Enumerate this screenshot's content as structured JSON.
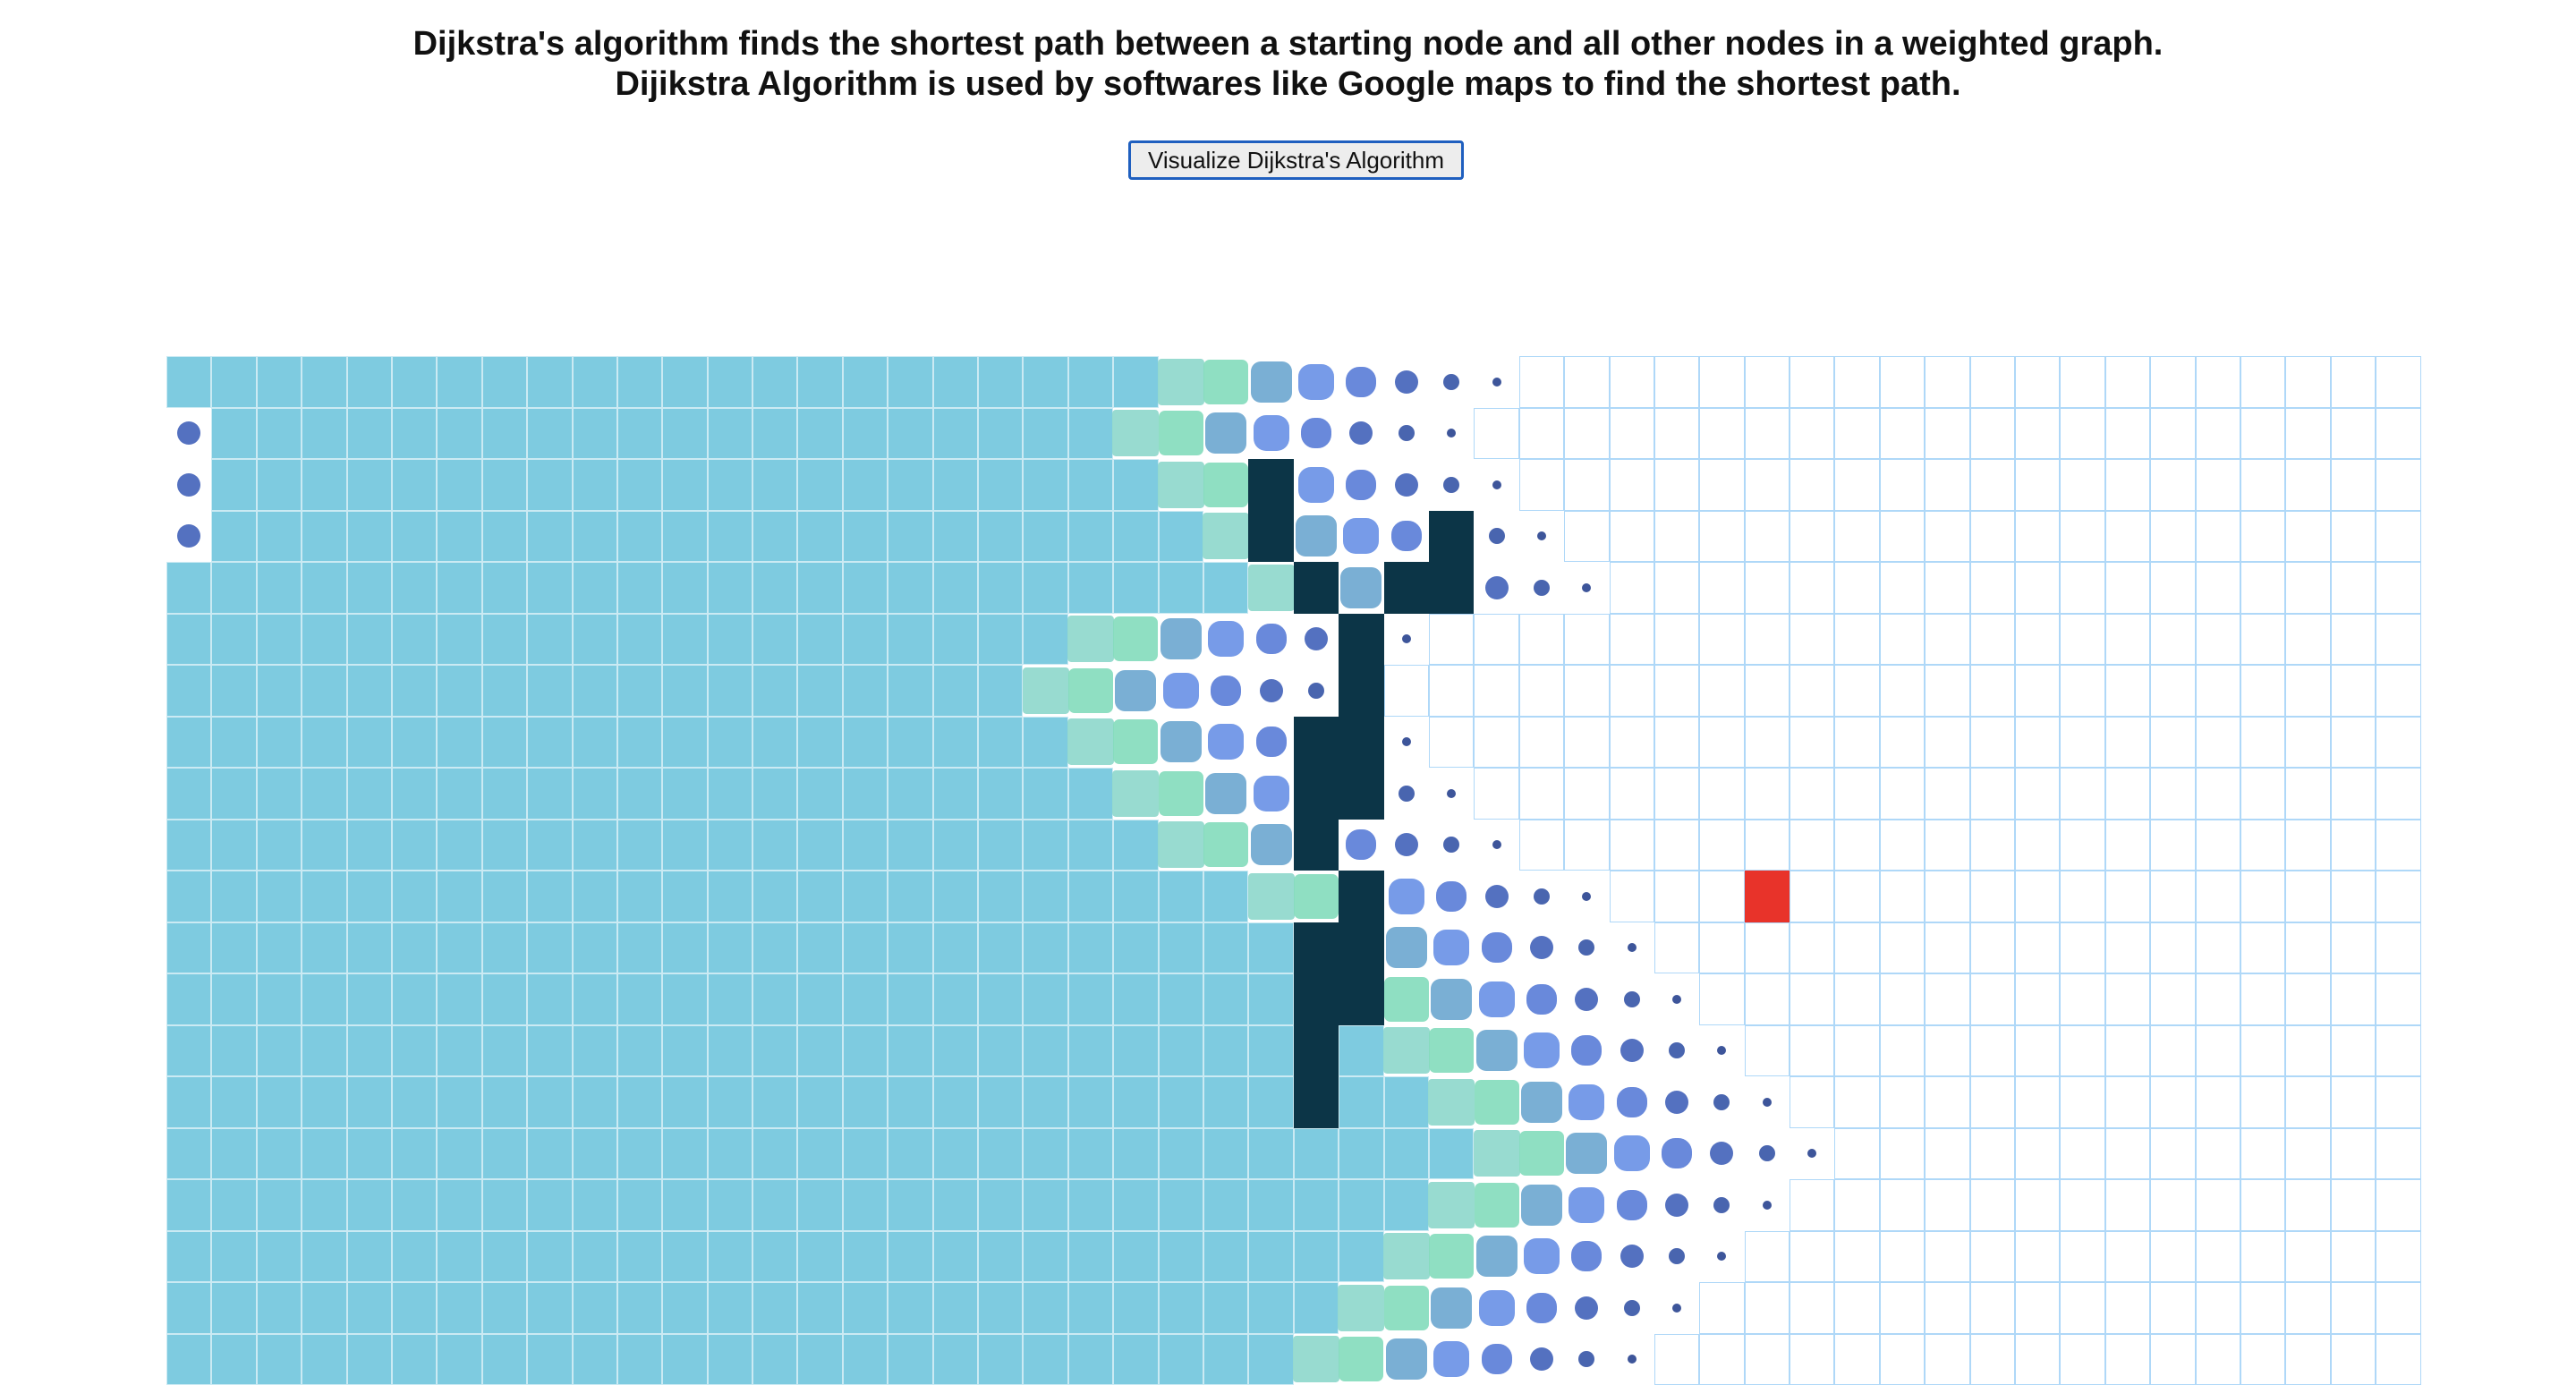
{
  "header": {
    "line1": "Dijkstra's algorithm finds the shortest path between a starting node and all other nodes in a weighted graph.",
    "line2": "Dijikstra Algorithm is used by softwares like Google maps to find the shortest path."
  },
  "controls": {
    "visualize_label": "Visualize Dijkstra's Algorithm"
  },
  "colors": {
    "grid_border": "#afd8f8",
    "visited": "#7ecbe0",
    "wall": "#0c3547",
    "end": "#e8332a",
    "frontier_dark": "#324d9c",
    "frontier_blue": "#4f7fe0",
    "frontier_teal": "#5bb8c9",
    "frontier_green": "#7ee0c0"
  },
  "grid": {
    "rows": 20,
    "cols": 50,
    "end_node": {
      "row": 10,
      "col": 35
    },
    "visited_extent": [
      30,
      29,
      30,
      31,
      32,
      28,
      27,
      28,
      29,
      30,
      32,
      33,
      34,
      35,
      36,
      37,
      36,
      35,
      34,
      33
    ],
    "walls": [
      [
        2,
        24
      ],
      [
        3,
        24
      ],
      [
        3,
        28
      ],
      [
        4,
        25
      ],
      [
        4,
        27
      ],
      [
        4,
        28
      ],
      [
        5,
        26
      ],
      [
        6,
        26
      ],
      [
        7,
        25
      ],
      [
        7,
        26
      ],
      [
        8,
        25
      ],
      [
        8,
        26
      ],
      [
        9,
        25
      ],
      [
        10,
        26
      ],
      [
        11,
        25
      ],
      [
        11,
        26
      ],
      [
        12,
        25
      ],
      [
        12,
        26
      ],
      [
        13,
        25
      ],
      [
        14,
        25
      ]
    ]
  }
}
